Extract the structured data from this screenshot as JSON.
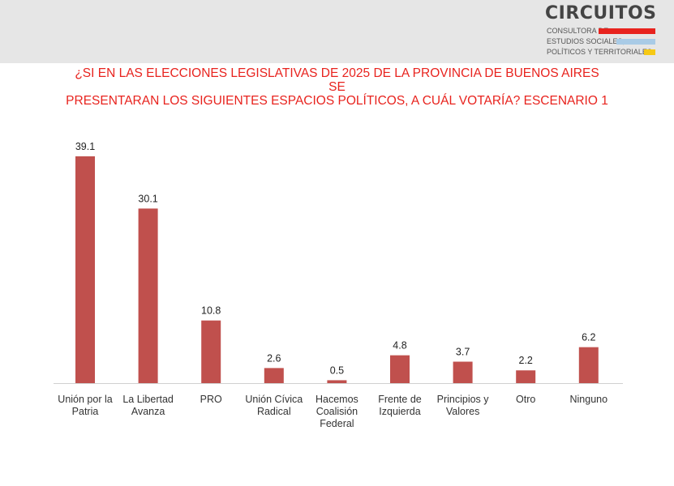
{
  "header": {
    "logo": {
      "name": "CIRCUITOS",
      "lines": [
        "CONSULTORA DE",
        "ESTUDIOS SOCIALES,",
        "POLÍTICOS Y TERRITORIALES"
      ],
      "bar_colors": [
        "#e8231e",
        "#a9cbe6",
        "#f6c915"
      ]
    },
    "band_color": "#e6e6e6"
  },
  "colors": {
    "title": "#e8231e",
    "bar": "#c0504d",
    "axis": "#d0d0d0"
  },
  "chart_data": {
    "type": "bar",
    "title": "¿SI EN LAS ELECCIONES LEGISLATIVAS DE 2025 DE LA PROVINCIA DE BUENOS AIRES SE PRESENTARAN LOS SIGUIENTES ESPACIOS POLÍTICOS, A CUÁL VOTARÍA? ESCENARIO 1",
    "title_lines": [
      "¿SI EN LAS ELECCIONES LEGISLATIVAS DE 2025 DE LA PROVINCIA DE BUENOS AIRES SE",
      "PRESENTARAN LOS SIGUIENTES ESPACIOS POLÍTICOS, A CUÁL VOTARÍA? ESCENARIO 1"
    ],
    "categories": [
      [
        "Unión por la",
        "Patria"
      ],
      [
        "La Libertad",
        "Avanza"
      ],
      [
        "PRO"
      ],
      [
        "Unión Cívica",
        "Radical"
      ],
      [
        "Hacemos",
        "Coalisión",
        "Federal"
      ],
      [
        "Frente de",
        "Izquierda"
      ],
      [
        "Principios y",
        "Valores"
      ],
      [
        "Otro"
      ],
      [
        "Ninguno"
      ]
    ],
    "values": [
      39.1,
      30.1,
      10.8,
      2.6,
      0.5,
      4.8,
      3.7,
      2.2,
      6.2
    ],
    "value_labels": [
      "39.1",
      "30.1",
      "10.8",
      "2.6",
      "0.5",
      "4.8",
      "3.7",
      "2.2",
      "6.2"
    ],
    "ylim": [
      0,
      39.1
    ],
    "grid": false,
    "legend": "none",
    "xlabel": "",
    "ylabel": ""
  }
}
